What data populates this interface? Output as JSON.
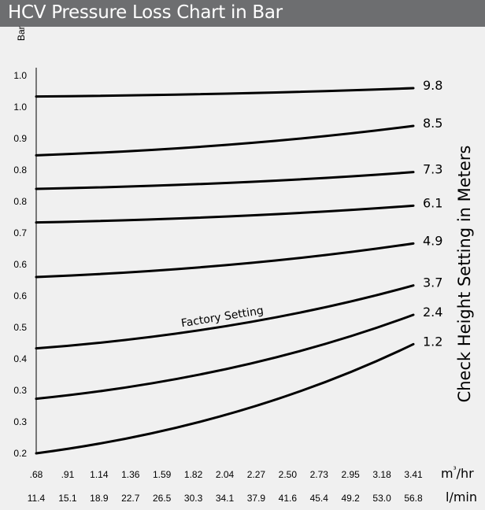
{
  "title": "HCV Pressure Loss Chart in Bar",
  "chart_data": {
    "type": "line",
    "title": "HCV Pressure Loss Chart in Bar",
    "ylabel": "Bar",
    "right_label": "Check Height Setting in Meters",
    "y_tick_labels": [
      "1.0",
      "1.0",
      "0.9",
      "0.8",
      "0.8",
      "0.7",
      "0.6",
      "0.6",
      "0.5",
      "0.4",
      "0.3",
      "0.3",
      "0.2"
    ],
    "x_unit_1": "m³/hr",
    "x_unit_2": "l/min",
    "x": [
      0.68,
      3.41
    ],
    "x_tick_labels_m3hr": [
      ".68",
      ".91",
      "1.14",
      "1.36",
      "1.59",
      "1.82",
      "2.04",
      "2.27",
      "2.50",
      "2.73",
      "2.95",
      "3.18",
      "3.41"
    ],
    "x_tick_labels_lmin": [
      "11.4",
      "15.1",
      "18.9",
      "22.7",
      "26.5",
      "30.3",
      "34.1",
      "37.9",
      "41.6",
      "45.4",
      "49.2",
      "53.0",
      "56.8"
    ],
    "ylim": [
      0.2,
      1.1
    ],
    "series": [
      {
        "name": "9.8",
        "values": [
          1.05,
          1.07
        ]
      },
      {
        "name": "8.5",
        "values": [
          0.91,
          0.98
        ]
      },
      {
        "name": "7.3",
        "values": [
          0.83,
          0.87
        ]
      },
      {
        "name": "6.1",
        "values": [
          0.75,
          0.79
        ]
      },
      {
        "name": "4.9",
        "values": [
          0.62,
          0.7
        ]
      },
      {
        "name": "3.7",
        "values": [
          0.45,
          0.6
        ]
      },
      {
        "name": "2.4",
        "values": [
          0.33,
          0.53
        ]
      },
      {
        "name": "1.2",
        "values": [
          0.2,
          0.46
        ]
      }
    ],
    "annotation": "Factory Setting",
    "annotated_series": "3.7",
    "grid": false
  }
}
